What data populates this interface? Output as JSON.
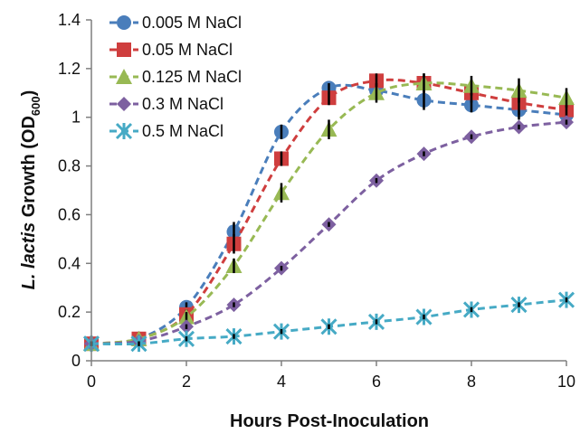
{
  "chart_data": {
    "type": "line",
    "title": "",
    "xlabel": "Hours Post-Inoculation",
    "ylabel": {
      "italic": "L. lactis",
      "plain": " Growth (OD",
      "sub": "600",
      "close": ")"
    },
    "xlim": [
      0,
      10
    ],
    "ylim": [
      0,
      1.4
    ],
    "x_ticks": [
      0,
      2,
      4,
      6,
      8,
      10
    ],
    "y_ticks": [
      0,
      0.2,
      0.4,
      0.6,
      0.8,
      1,
      1.2,
      1.4
    ],
    "grid": false,
    "legend_position": "top-left",
    "x": [
      0,
      1,
      2,
      3,
      4,
      5,
      6,
      7,
      8,
      9,
      10
    ],
    "series": [
      {
        "name": "0.005 M NaCl",
        "color": "#4a7ebb",
        "marker": "circle",
        "values": [
          0.07,
          0.09,
          0.22,
          0.53,
          0.94,
          1.12,
          1.11,
          1.07,
          1.05,
          1.03,
          1.01
        ],
        "errors": [
          0.01,
          0.01,
          0.02,
          0.04,
          0.03,
          0.02,
          0.03,
          0.04,
          0.03,
          0.04,
          0.03
        ]
      },
      {
        "name": "0.05 M NaCl",
        "color": "#cf3e3e",
        "marker": "square",
        "values": [
          0.07,
          0.09,
          0.19,
          0.48,
          0.83,
          1.08,
          1.15,
          1.14,
          1.1,
          1.06,
          1.03
        ],
        "errors": [
          0.01,
          0.01,
          0.02,
          0.04,
          0.03,
          0.03,
          0.03,
          0.04,
          0.04,
          0.05,
          0.04
        ]
      },
      {
        "name": "0.125 M NaCl",
        "color": "#98b954",
        "marker": "triangle",
        "values": [
          0.07,
          0.09,
          0.18,
          0.39,
          0.69,
          0.95,
          1.1,
          1.14,
          1.13,
          1.11,
          1.08
        ],
        "errors": [
          0.01,
          0.01,
          0.02,
          0.03,
          0.04,
          0.04,
          0.04,
          0.04,
          0.04,
          0.05,
          0.04
        ]
      },
      {
        "name": "0.3 M NaCl",
        "color": "#7d60a0",
        "marker": "diamond",
        "values": [
          0.07,
          0.08,
          0.14,
          0.23,
          0.38,
          0.56,
          0.74,
          0.85,
          0.92,
          0.96,
          0.98
        ],
        "errors": [
          0.01,
          0.01,
          0.01,
          0.01,
          0.01,
          0.01,
          0.01,
          0.01,
          0.01,
          0.01,
          0.01
        ]
      },
      {
        "name": "0.5 M NaCl",
        "color": "#46aac5",
        "marker": "x",
        "values": [
          0.07,
          0.07,
          0.09,
          0.1,
          0.12,
          0.14,
          0.16,
          0.18,
          0.21,
          0.23,
          0.25
        ],
        "errors": [
          0.01,
          0.01,
          0.01,
          0.01,
          0.01,
          0.01,
          0.01,
          0.01,
          0.01,
          0.01,
          0.01
        ]
      }
    ]
  }
}
